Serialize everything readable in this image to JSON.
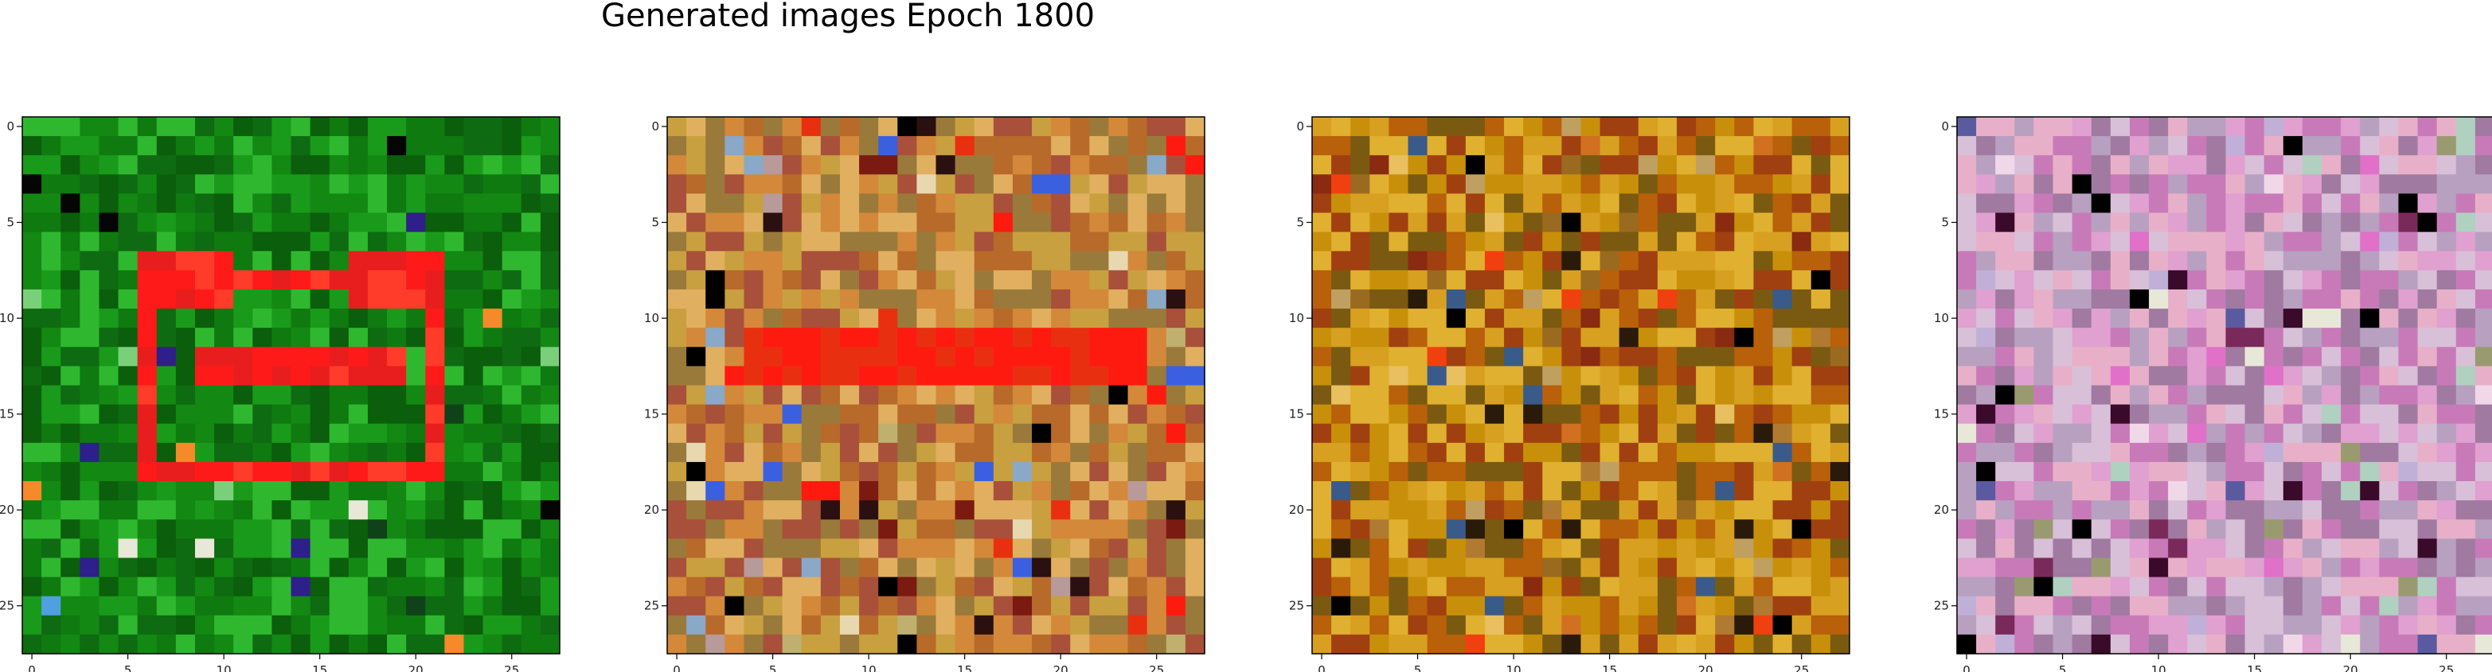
{
  "figure": {
    "title": "Generated images Epoch 1800"
  },
  "chart_data": [
    {
      "type": "heatmap",
      "title": "",
      "xlim": [
        -0.5,
        27.5
      ],
      "ylim": [
        27.5,
        -0.5
      ],
      "xticks": [
        0,
        5,
        10,
        15,
        20,
        25
      ],
      "yticks": [
        0,
        5,
        10,
        15,
        20,
        25
      ],
      "grid_size": 28,
      "palette": [
        "#0f7a0f",
        "#138813",
        "#0b5e0b",
        "#1a9a1a",
        "#2fb82f",
        "#0e6b12",
        "#ff1a1a",
        "#e81e1e",
        "#ff3b2a",
        "#2e1f8a",
        "#4fa0e0",
        "#e8e8d8",
        "#050505",
        "#7ad07a",
        "#f58a2a",
        "#10421a"
      ]
    },
    {
      "type": "heatmap",
      "title": "",
      "xlim": [
        -0.5,
        27.5
      ],
      "ylim": [
        27.5,
        -0.5
      ],
      "xticks": [
        0,
        5,
        10,
        15,
        20,
        25
      ],
      "yticks": [
        0,
        5,
        10,
        15,
        20,
        25
      ],
      "grid_size": 28,
      "palette": [
        "#c8a040",
        "#b86a2a",
        "#d4883a",
        "#a8503a",
        "#e0b060",
        "#9a7a3a",
        "#c0b070",
        "#b89a9a",
        "#ff1a10",
        "#e83010",
        "#7a1a10",
        "#2a1010",
        "#000000",
        "#3a60e0",
        "#8aa8c8",
        "#e8d8b0"
      ]
    },
    {
      "type": "heatmap",
      "title": "",
      "xlim": [
        -0.5,
        27.5
      ],
      "ylim": [
        27.5,
        -0.5
      ],
      "xticks": [
        0,
        5,
        10,
        15,
        20,
        25
      ],
      "yticks": [
        0,
        5,
        10,
        15,
        20,
        25
      ],
      "grid_size": 28,
      "palette": [
        "#c8900a",
        "#b8600a",
        "#d8a020",
        "#a04010",
        "#e0b030",
        "#7a5a10",
        "#b07a30",
        "#8a2a10",
        "#c0a060",
        "#d07020",
        "#2a1a0a",
        "#000000",
        "#3a5a8a",
        "#e8c060",
        "#9a6a20",
        "#f04010"
      ]
    },
    {
      "type": "heatmap",
      "title": "",
      "xlim": [
        -0.5,
        27.5
      ],
      "ylim": [
        27.5,
        -0.5
      ],
      "xticks": [
        0,
        5,
        10,
        15,
        20,
        25
      ],
      "yticks": [
        0,
        5,
        10,
        15,
        20,
        25
      ],
      "grid_size": 28,
      "palette": [
        "#c87ab8",
        "#e0a0d0",
        "#b8a0c0",
        "#d8c0d8",
        "#a07aa0",
        "#e8b0c8",
        "#9a9a70",
        "#7a2a5a",
        "#f0d8e8",
        "#b0d0c0",
        "#3a0a2a",
        "#000000",
        "#5a5aa0",
        "#e070c8",
        "#c0b0d8",
        "#e8e8d8"
      ]
    }
  ]
}
